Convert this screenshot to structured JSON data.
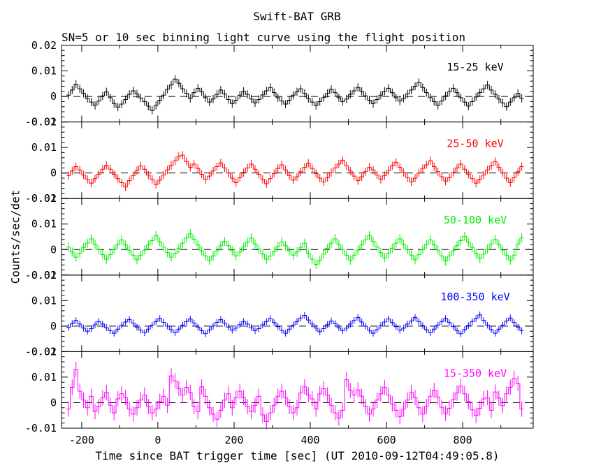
{
  "header": {
    "title": "Swift-BAT GRB",
    "subtitle": "SN=5 or 10 sec binning light curve using the flight position"
  },
  "chart_data": {
    "type": "line",
    "title": "Swift-BAT GRB",
    "subtitle": "SN=5 or 10 sec binning light curve using the flight position",
    "xlabel": "Time since BAT trigger time [sec] (UT 2010-09-12T04:49:05.8)",
    "ylabel": "Counts/sec/det",
    "style": "histogram-step-with-error-bars",
    "xlim": [
      -253,
      985
    ],
    "panel_ylim": [
      -0.01,
      0.02
    ],
    "x_major_ticks": [
      -200,
      0,
      200,
      400,
      600,
      800
    ],
    "x_major_tick_labels": [
      "-200",
      "0",
      "200",
      "400",
      "600",
      "800"
    ],
    "x_minor_step": 100,
    "y_major_ticks": [
      0.02,
      0.01,
      0,
      -0.01
    ],
    "y_tick_labels": [
      "0.02",
      "0.01",
      "0",
      "-0.01"
    ],
    "y_minor_step": 0.002,
    "zero_line": "dashed-black",
    "grid": false,
    "legend_position": "inside-top-right-per-panel",
    "x_start": -240,
    "bin_width": 10,
    "value_scale": 0.0001,
    "series": [
      {
        "name": "15-25 keV",
        "color": "#000000",
        "err": 16,
        "values": [
          5,
          25,
          48,
          30,
          12,
          -8,
          -22,
          -35,
          -18,
          2,
          18,
          -5,
          -28,
          -42,
          -30,
          -12,
          8,
          22,
          10,
          -6,
          -20,
          -38,
          -55,
          -35,
          -15,
          5,
          28,
          45,
          68,
          52,
          30,
          12,
          -8,
          15,
          32,
          18,
          -5,
          -22,
          -10,
          8,
          25,
          10,
          -12,
          -28,
          -15,
          5,
          20,
          8,
          -10,
          -25,
          -12,
          6,
          22,
          35,
          15,
          -5,
          -18,
          -30,
          -15,
          5,
          18,
          30,
          12,
          -8,
          -22,
          -35,
          -20,
          -5,
          12,
          28,
          15,
          -5,
          -20,
          -10,
          8,
          22,
          35,
          20,
          2,
          -15,
          -28,
          -12,
          5,
          20,
          32,
          15,
          -5,
          -18,
          -8,
          10,
          25,
          40,
          55,
          35,
          15,
          -5,
          -20,
          -35,
          -18,
          2,
          18,
          32,
          15,
          -5,
          -22,
          -38,
          -20,
          -2,
          15,
          30,
          45,
          25,
          8,
          -10,
          -25,
          -40,
          -22,
          -5,
          12,
          -8
        ]
      },
      {
        "name": "25-50 keV",
        "color": "#ff0000",
        "err": 16,
        "values": [
          -10,
          8,
          25,
          12,
          -8,
          -25,
          -40,
          -22,
          -5,
          15,
          30,
          15,
          -5,
          -22,
          -38,
          -55,
          -30,
          -10,
          10,
          28,
          15,
          -8,
          -25,
          -45,
          -28,
          -8,
          12,
          30,
          48,
          65,
          70,
          45,
          22,
          35,
          18,
          -5,
          -25,
          -12,
          8,
          25,
          40,
          20,
          0,
          -20,
          -38,
          -18,
          2,
          20,
          35,
          15,
          -5,
          -25,
          -42,
          -22,
          -2,
          18,
          32,
          12,
          -10,
          -28,
          -15,
          5,
          22,
          38,
          18,
          -2,
          -20,
          -35,
          -18,
          2,
          20,
          35,
          50,
          28,
          8,
          -12,
          -30,
          -15,
          5,
          22,
          12,
          -8,
          -25,
          -10,
          10,
          28,
          42,
          22,
          2,
          -18,
          -35,
          -20,
          0,
          18,
          32,
          48,
          25,
          5,
          -15,
          -32,
          -18,
          2,
          20,
          35,
          15,
          -5,
          -22,
          -40,
          -25,
          -8,
          12,
          28,
          45,
          22,
          0,
          -20,
          -38,
          -18,
          5,
          25
        ]
      },
      {
        "name": "50-100 keV",
        "color": "#00ee00",
        "err": 18,
        "values": [
          10,
          -10,
          -30,
          -15,
          8,
          25,
          42,
          20,
          0,
          -20,
          -38,
          -20,
          0,
          20,
          38,
          18,
          -2,
          -22,
          -40,
          -22,
          -2,
          18,
          35,
          55,
          30,
          10,
          -12,
          -30,
          -15,
          5,
          25,
          45,
          62,
          40,
          18,
          -5,
          -25,
          -42,
          -25,
          -5,
          15,
          32,
          15,
          -5,
          -25,
          -10,
          10,
          28,
          45,
          22,
          2,
          -18,
          -38,
          -25,
          -8,
          12,
          30,
          15,
          -5,
          -22,
          -10,
          8,
          25,
          -15,
          -38,
          -58,
          -42,
          -18,
          5,
          25,
          42,
          20,
          0,
          -22,
          -42,
          -22,
          -2,
          18,
          38,
          55,
          32,
          10,
          -12,
          -32,
          -15,
          5,
          25,
          42,
          20,
          0,
          -22,
          -40,
          -20,
          0,
          20,
          38,
          18,
          -2,
          -25,
          -45,
          -25,
          -5,
          15,
          35,
          52,
          28,
          8,
          -15,
          -35,
          -18,
          2,
          22,
          40,
          20,
          -2,
          -22,
          -42,
          -22,
          22,
          45
        ]
      },
      {
        "name": "100-350 keV",
        "color": "#0000ff",
        "err": 13,
        "values": [
          -5,
          10,
          22,
          8,
          -8,
          -20,
          -10,
          5,
          18,
          8,
          -6,
          -18,
          -28,
          -12,
          4,
          16,
          26,
          12,
          -4,
          -16,
          -26,
          -12,
          4,
          18,
          30,
          15,
          0,
          -14,
          -26,
          -12,
          4,
          18,
          28,
          12,
          -4,
          -18,
          -30,
          -15,
          0,
          15,
          26,
          12,
          -4,
          -16,
          -8,
          6,
          18,
          8,
          -6,
          -18,
          -10,
          5,
          18,
          30,
          14,
          -2,
          -16,
          -28,
          -12,
          4,
          18,
          32,
          42,
          24,
          8,
          -8,
          -22,
          -10,
          6,
          20,
          10,
          -6,
          -18,
          -8,
          8,
          22,
          34,
          16,
          0,
          -16,
          -28,
          -14,
          2,
          16,
          28,
          14,
          -2,
          -16,
          -8,
          8,
          20,
          34,
          18,
          2,
          -14,
          -26,
          -12,
          4,
          18,
          30,
          14,
          -2,
          -18,
          -30,
          -14,
          2,
          18,
          30,
          44,
          22,
          4,
          -14,
          -28,
          -12,
          4,
          20,
          32,
          14,
          -4,
          -18
        ]
      },
      {
        "name": "15-350 keV",
        "color": "#ff00ff",
        "err": 30,
        "values": [
          -25,
          60,
          130,
          45,
          10,
          -20,
          25,
          -35,
          -15,
          20,
          40,
          -10,
          -40,
          15,
          35,
          20,
          -25,
          -45,
          -20,
          10,
          30,
          -15,
          -40,
          -25,
          5,
          25,
          -10,
          105,
          85,
          55,
          30,
          60,
          40,
          -15,
          -35,
          62,
          25,
          -20,
          -45,
          -65,
          -30,
          10,
          35,
          -20,
          20,
          45,
          20,
          -15,
          -35,
          -10,
          25,
          -48,
          -74,
          -40,
          -10,
          25,
          45,
          20,
          -15,
          -40,
          -20,
          38,
          62,
          30,
          15,
          -25,
          35,
          55,
          30,
          -10,
          -40,
          -60,
          -30,
          90,
          48,
          30,
          50,
          25,
          -15,
          -45,
          -25,
          10,
          35,
          60,
          30,
          -5,
          -30,
          -55,
          -25,
          10,
          40,
          20,
          -20,
          -45,
          -15,
          25,
          48,
          22,
          -18,
          -42,
          -22,
          12,
          38,
          65,
          35,
          5,
          -28,
          -50,
          -22,
          15,
          20,
          -30,
          42,
          18,
          -12,
          35,
          60,
          95,
          75,
          -25
        ]
      }
    ]
  }
}
